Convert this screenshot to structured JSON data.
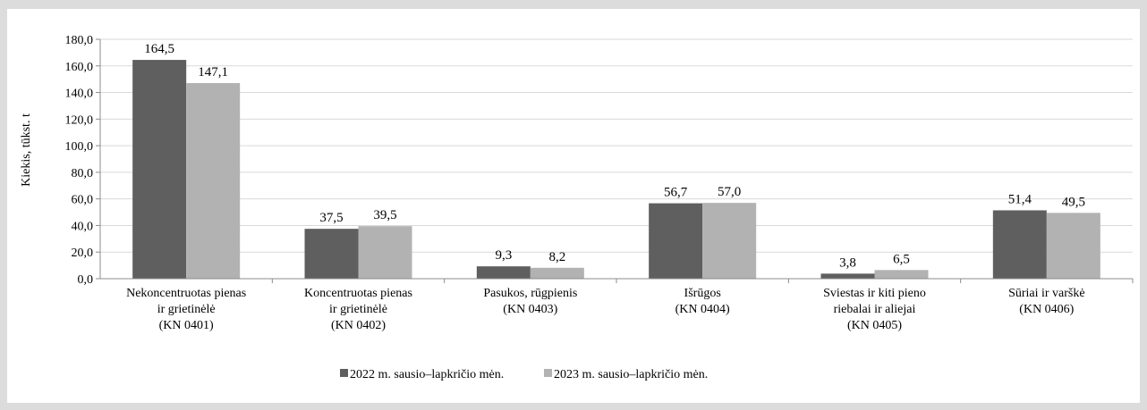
{
  "chart_data": {
    "type": "bar",
    "ylabel": "Kiekis, tūkst. t",
    "ylim": [
      0,
      180
    ],
    "ytick_labels": [
      "0,0",
      "20,0",
      "40,0",
      "60,0",
      "80,0",
      "100,0",
      "120,0",
      "140,0",
      "160,0",
      "180,0"
    ],
    "ytick_values": [
      0,
      20,
      40,
      60,
      80,
      100,
      120,
      140,
      160,
      180
    ],
    "categories": [
      [
        "Nekoncentruotas pienas",
        "ir grietinėlė",
        "(KN 0401)"
      ],
      [
        "Koncentruotas pienas",
        "ir grietinėlė",
        "(KN 0402)"
      ],
      [
        "Pasukos, rūgpienis",
        "(KN 0403)"
      ],
      [
        "Išrūgos",
        "(KN 0404)"
      ],
      [
        "Sviestas ir kiti pieno",
        "riebalai ir aliejai",
        "(KN 0405)"
      ],
      [
        "Sūriai ir varškė",
        "(KN 0406)"
      ]
    ],
    "series": [
      {
        "name": "2022 m. sausio–lapkričio mėn.",
        "color": "#5f5f5f",
        "values": [
          164.5,
          37.5,
          9.3,
          56.7,
          3.8,
          51.4
        ],
        "labels": [
          "164,5",
          "37,5",
          "9,3",
          "56,7",
          "3,8",
          "51,4"
        ]
      },
      {
        "name": "2023 m. sausio–lapkričio mėn.",
        "color": "#b2b2b2",
        "values": [
          147.1,
          39.5,
          8.2,
          57.0,
          6.5,
          49.5
        ],
        "labels": [
          "147,1",
          "39,5",
          "8,2",
          "57,0",
          "6,5",
          "49,5"
        ]
      }
    ],
    "grid": true,
    "legend_position": "bottom-center"
  }
}
